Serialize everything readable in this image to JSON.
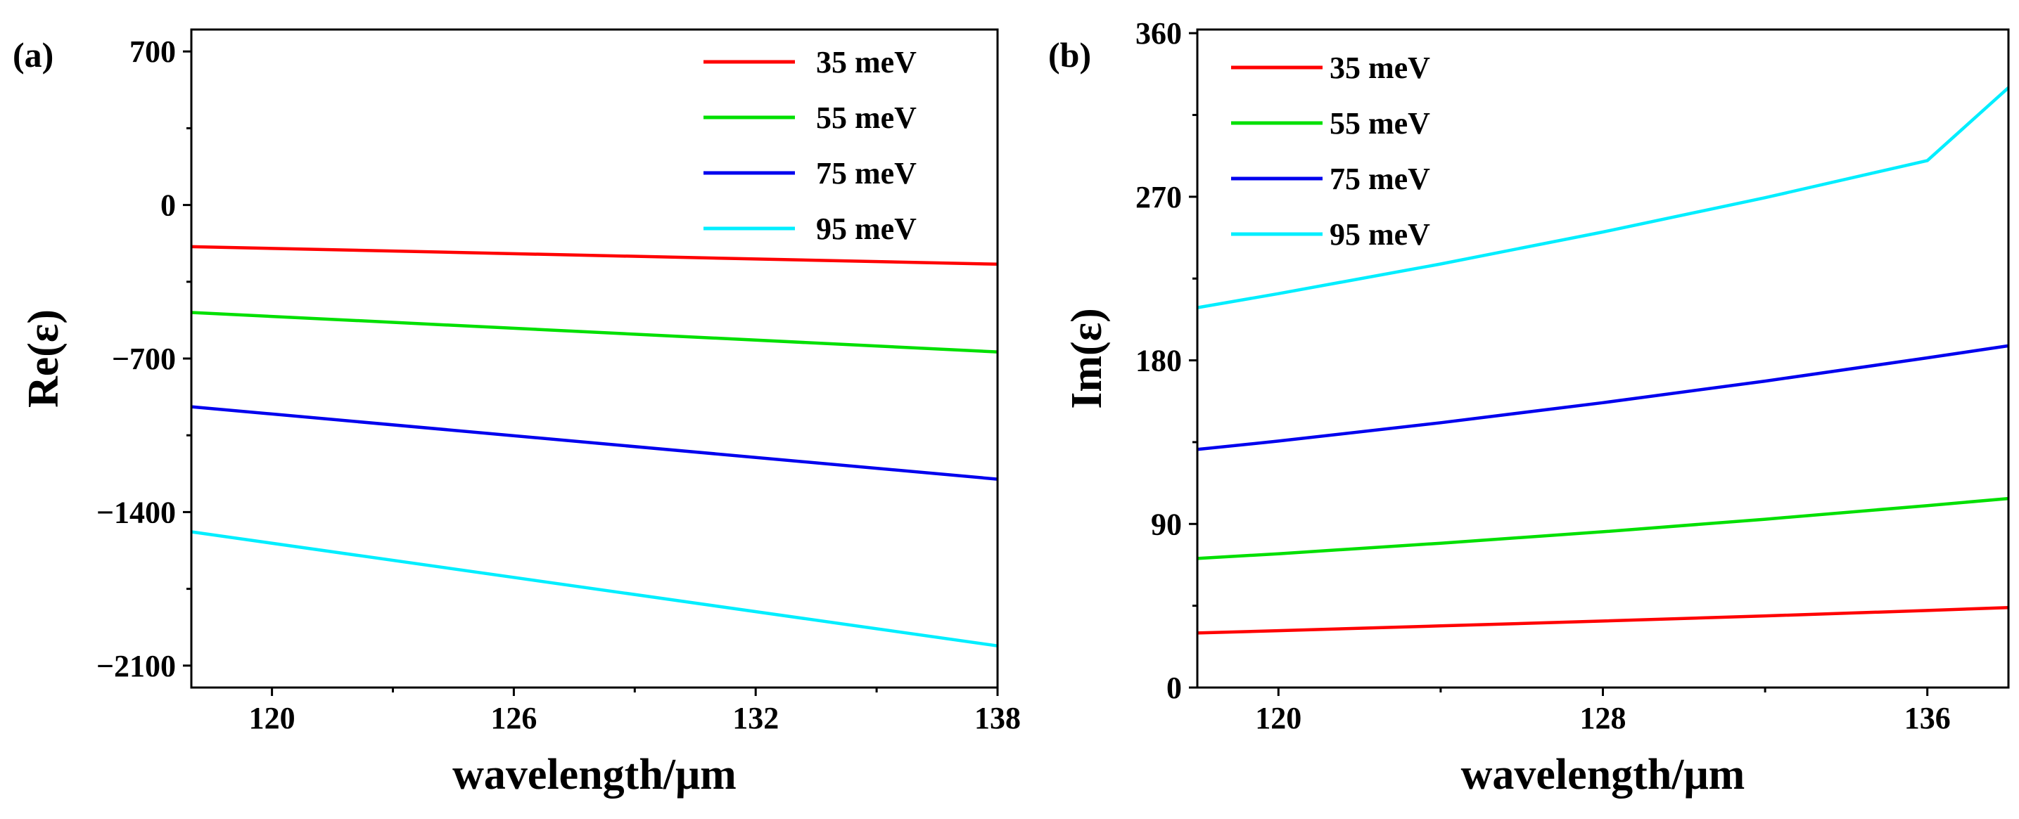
{
  "chart_data": [
    {
      "type": "line",
      "panel_label": "(a)",
      "xlabel": "wavelength/μm",
      "ylabel": "Re(ε)",
      "xlim": [
        118,
        138
      ],
      "ylim": [
        -2200,
        800
      ],
      "xticks": [
        120,
        126,
        132,
        138
      ],
      "xtick_labels": [
        "120",
        "126",
        "132",
        "138"
      ],
      "yticks": [
        700,
        0,
        -700,
        -1400,
        -2100
      ],
      "ytick_labels": [
        "700",
        "0",
        "−700",
        "−1400",
        "−2100"
      ],
      "legend_position": "top-right",
      "series": [
        {
          "name": "35 meV",
          "color": "#ff0000",
          "x": [
            118,
            138
          ],
          "y": [
            -190,
            -270
          ]
        },
        {
          "name": "55 meV",
          "color": "#00e000",
          "x": [
            118,
            138
          ],
          "y": [
            -490,
            -670
          ]
        },
        {
          "name": "75 meV",
          "color": "#0000ee",
          "x": [
            118,
            138
          ],
          "y": [
            -920,
            -1250
          ]
        },
        {
          "name": "95 meV",
          "color": "#00eeff",
          "x": [
            118,
            138
          ],
          "y": [
            -1490,
            -2010
          ]
        }
      ]
    },
    {
      "type": "line",
      "panel_label": "(b)",
      "xlabel": "wavelength/μm",
      "ylabel": "Im(ε)",
      "xlim": [
        118,
        138
      ],
      "ylim": [
        0,
        362
      ],
      "xticks": [
        120,
        128,
        136
      ],
      "xtick_labels": [
        "120",
        "128",
        "136"
      ],
      "yticks": [
        0,
        90,
        180,
        270,
        360
      ],
      "ytick_labels": [
        "0",
        "90",
        "180",
        "270",
        "360"
      ],
      "legend_position": "top-left",
      "series": [
        {
          "name": "35 meV",
          "color": "#ff0000",
          "x": [
            118,
            120,
            124,
            128,
            132,
            136,
            138
          ],
          "y": [
            30,
            31.3,
            33.9,
            36.6,
            39.4,
            42.4,
            44
          ]
        },
        {
          "name": "55 meV",
          "color": "#00e000",
          "x": [
            118,
            120,
            124,
            128,
            132,
            136,
            138
          ],
          "y": [
            71,
            73.6,
            79.4,
            85.7,
            92.6,
            100.1,
            104
          ]
        },
        {
          "name": "75 meV",
          "color": "#0000ee",
          "x": [
            118,
            120,
            124,
            128,
            132,
            136,
            138
          ],
          "y": [
            131,
            135.6,
            145.7,
            156.7,
            168.6,
            181.4,
            188
          ]
        },
        {
          "name": "95 meV",
          "color": "#00eeff",
          "x": [
            118,
            120,
            124,
            128,
            132,
            136,
            138
          ],
          "y": [
            209,
            216.7,
            233,
            250.6,
            269.5,
            289.9,
            330
          ]
        }
      ]
    }
  ]
}
